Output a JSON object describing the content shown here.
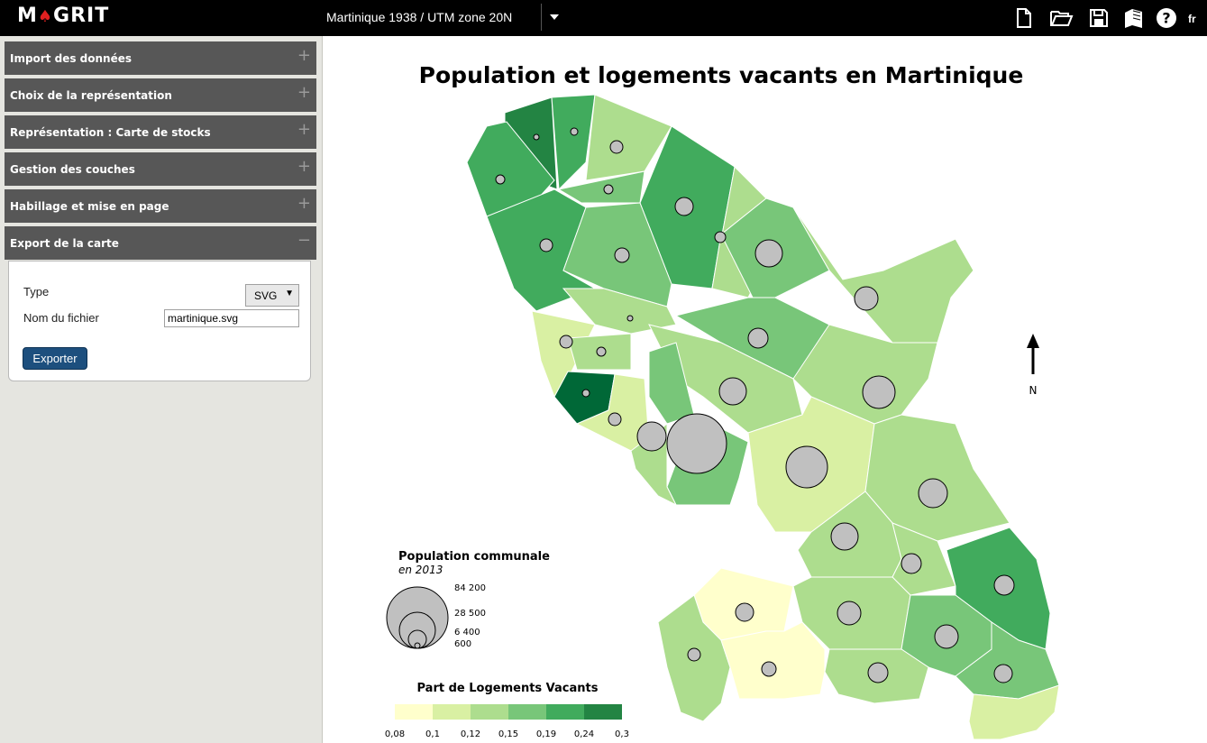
{
  "app": {
    "logo_text": "MAGRIT",
    "lang": "fr"
  },
  "projection": {
    "label": "Martinique 1938 / UTM zone 20N"
  },
  "toolbar": {
    "icons": [
      "new-file-icon",
      "open-folder-icon",
      "save-icon",
      "book-icon",
      "help-icon"
    ]
  },
  "sidebar": {
    "sections": [
      {
        "label": "Import des données",
        "toggle": "+"
      },
      {
        "label": "Choix de la représentation",
        "toggle": "+"
      },
      {
        "label": "Représentation : Carte de stocks",
        "toggle": "+"
      },
      {
        "label": "Gestion des couches",
        "toggle": "+"
      },
      {
        "label": "Habillage et mise en page",
        "toggle": "+"
      },
      {
        "label": "Export de la carte",
        "toggle": "−"
      }
    ],
    "export": {
      "type_label": "Type",
      "type_value": "SVG",
      "filename_label": "Nom du fichier",
      "filename_value": "martinique.svg",
      "export_button": "Exporter"
    }
  },
  "map": {
    "title": "Population et logements vacants en Martinique",
    "north_label": "N",
    "circle_color": "#c0c0c0",
    "prop_legend": {
      "title": "Population communale",
      "subtitle": "en 2013",
      "values": [
        "84 200",
        "28 500",
        "6 400",
        "600"
      ]
    },
    "choro_legend": {
      "title": "Part de Logements Vacants",
      "breaks": [
        "0,08",
        "0,1",
        "0,12",
        "0,15",
        "0,19",
        "0,24",
        "0,3"
      ],
      "colors": [
        "#ffffcc",
        "#d9f0a3",
        "#addd8e",
        "#78c679",
        "#41ab5d",
        "#238443",
        "#006837"
      ]
    }
  }
}
